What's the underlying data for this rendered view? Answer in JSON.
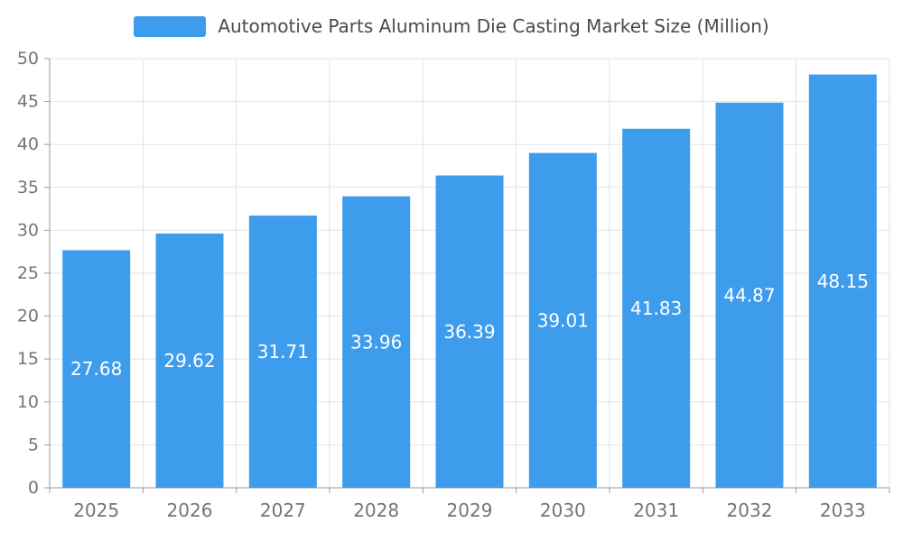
{
  "chart_data": {
    "type": "bar",
    "title": "Automotive Parts Aluminum Die Casting Market Size (Million)",
    "legend": {
      "position": "top",
      "entries": [
        "Automotive Parts Aluminum Die Casting Market Size (Million)"
      ]
    },
    "categories": [
      "2025",
      "2026",
      "2027",
      "2028",
      "2029",
      "2030",
      "2031",
      "2032",
      "2033"
    ],
    "series": [
      {
        "name": "Automotive Parts Aluminum Die Casting Market Size (Million)",
        "values": [
          27.68,
          29.62,
          31.71,
          33.96,
          36.39,
          39.01,
          41.83,
          44.87,
          48.15
        ]
      }
    ],
    "xlabel": "",
    "ylabel": "",
    "ylim": [
      0,
      50
    ],
    "ytick_interval": 5,
    "ytick_labels": [
      "0",
      "5",
      "10",
      "15",
      "20",
      "25",
      "30",
      "35",
      "40",
      "45",
      "50"
    ],
    "grid": true,
    "value_labels_inside_bars": true
  },
  "colors": {
    "bar": "#3E9CEC",
    "title_text": "#4A4A4A",
    "axis_text": "#757575",
    "grid_line": "#E2E2E2",
    "axis_line": "#999999",
    "value_label_text": "#FFFFFF",
    "background": "#FFFFFF"
  }
}
